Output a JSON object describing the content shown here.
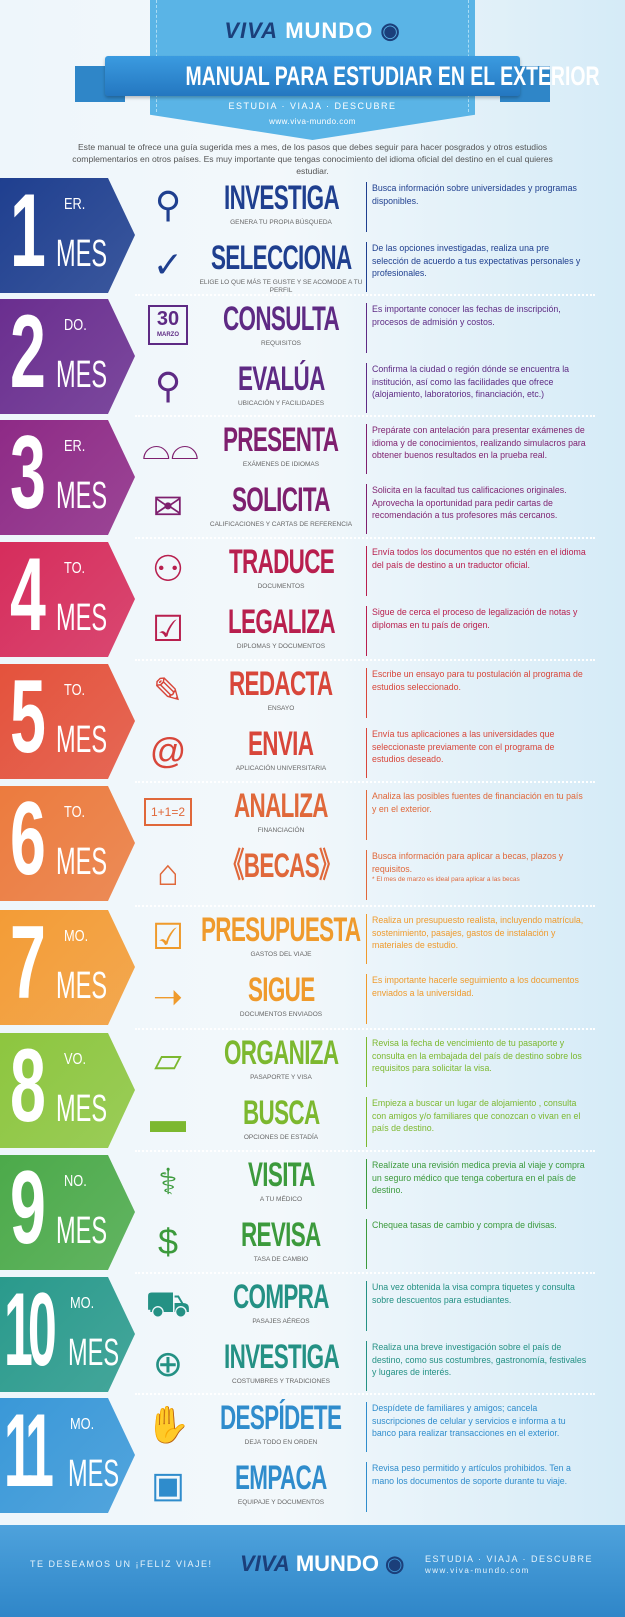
{
  "header": {
    "logo_text": "VIVA MUNDO",
    "logo_viva": "VIVA",
    "logo_mundo": "MUNDO",
    "title": "MANUAL PARA ESTUDIAR EN EL EXTERIOR",
    "tagline": "ESTUDIA · VIAJA · DESCUBRE",
    "url": "www.viva-mundo.com",
    "brand_color": "#5ab4e6"
  },
  "intro": "Este manual te ofrece una guía sugerida mes a mes, de los pasos que debes seguir para hacer posgrados y otros estudios complementarios en otros países. Es muy importante que tengas conocimiento del idioma oficial del destino en el cual quieres estudiar.",
  "months": [
    {
      "number": "1",
      "ordinal": "ER.",
      "label": "MES",
      "color": "#1f3f8f",
      "text_color": "#1f3f8f",
      "items": [
        {
          "icon": "magnifier-icon",
          "title": "INVESTIGA",
          "subtitle": "GENERA TU PROPIA BÚSQUEDA",
          "description": "Busca información sobre universidades y programas disponibles."
        },
        {
          "icon": "checkmark-icon",
          "title": "SELECCIONA",
          "subtitle": "ELIGE LO QUE MÁS TE GUSTE Y SE ACOMODE A TU PERFIL",
          "description": "De las opciones investigadas, realiza una pre selección de acuerdo a tus expectativas personales y profesionales."
        }
      ]
    },
    {
      "number": "2",
      "ordinal": "DO.",
      "label": "MES",
      "color": "#6a2e8f",
      "text_color": "#5e2a84",
      "items": [
        {
          "icon": "calendar-icon",
          "icon_text": "30",
          "icon_caption": "MARZO",
          "title": "CONSULTA",
          "subtitle": "REQUISITOS",
          "description": "Es importante conocer las fechas de inscripción, procesos de admisión y costos."
        },
        {
          "icon": "pushpin-icon",
          "title": "EVALÚA",
          "subtitle": "UBICACIÓN Y FACILIDADES",
          "description": "Confirma la ciudad o región dónde se encuentra la institución, así como las facilidades que ofrece (alojamiento, laboratorios, financiación, etc.)"
        }
      ]
    },
    {
      "number": "3",
      "ordinal": "ER.",
      "label": "MES",
      "color": "#8e2a86",
      "text_color": "#7e1f6e",
      "items": [
        {
          "icon": "glasses-icon",
          "title": "PRESENTA",
          "subtitle": "EXÁMENES DE IDIOMAS",
          "description": "Prepárate con antelación para presentar exámenes de idioma y de conocimientos, realizando simulacros para obtener buenos resultados en la prueba real."
        },
        {
          "icon": "envelope-icon",
          "title": "SOLICITA",
          "subtitle": "CALIFICACIONES Y CARTAS DE REFERENCIA",
          "description": "Solicita en la facultad tus calificaciones originales. Aprovecha la oportunidad para pedir cartas de recomendación a tus profesores más cercanos."
        }
      ]
    },
    {
      "number": "4",
      "ordinal": "TO.",
      "label": "MES",
      "color": "#d62d5c",
      "text_color": "#b81f4e",
      "items": [
        {
          "icon": "translator-desk-icon",
          "title": "TRADUCE",
          "subtitle": "DOCUMENTOS",
          "description": "Envía todos los documentos que no estén en el idioma del país de destino a un traductor oficial."
        },
        {
          "icon": "checked-document-icon",
          "title": "LEGALIZA",
          "subtitle": "DIPLOMAS Y DOCUMENTOS",
          "description": "Sigue de cerca el proceso de legalización de notas y diplomas en tu país de origen."
        }
      ]
    },
    {
      "number": "5",
      "ordinal": "TO.",
      "label": "MES",
      "color": "#e4523c",
      "text_color": "#d8463a",
      "items": [
        {
          "icon": "pencil-icon",
          "title": "REDACTA",
          "subtitle": "ENSAYO",
          "description": "Escribe un ensayo para tu postulación al programa de estudios seleccionado."
        },
        {
          "icon": "email-at-icon",
          "title": "ENVIA",
          "subtitle": "APLICACIÓN UNIVERSITARIA",
          "description": "Envía tus aplicaciones a las universidades que seleccionaste previamente con el programa de estudios deseado."
        }
      ]
    },
    {
      "number": "6",
      "ordinal": "TO.",
      "label": "MES",
      "color": "#ec7b3e",
      "text_color": "#e0683a",
      "items": [
        {
          "icon": "math-board-icon",
          "icon_text": "1+1=2",
          "title": "ANALIZA",
          "subtitle": "FINANCIACIÓN",
          "description": "Analiza las posibles fuentes de financiación en tu país y en el exterior."
        },
        {
          "icon": "gift-icon",
          "title": "《BECAS》",
          "subtitle": "",
          "description": "Busca información para aplicar a becas, plazos y requisitos.",
          "note": "* El mes de marzo es ideal para aplicar a las becas"
        }
      ]
    },
    {
      "number": "7",
      "ordinal": "MO.",
      "label": "MES",
      "color": "#f39c36",
      "text_color": "#ef9a2c",
      "items": [
        {
          "icon": "checklist-icon",
          "title": "PRESUPUESTA",
          "subtitle": "GASTOS DEL VIAJE",
          "description": "Realiza un presupuesto realista, incluyendo matrícula, sostenimiento, pasajes, gastos de instalación y materiales de estudio."
        },
        {
          "icon": "dotted-path-arrow-icon",
          "title": "SIGUE",
          "subtitle": "DOCUMENTOS ENVIADOS",
          "description": "Es importante hacerle seguimiento a los documentos enviados a la universidad."
        }
      ]
    },
    {
      "number": "8",
      "ordinal": "VO.",
      "label": "MES",
      "color": "#8dc63f",
      "text_color": "#7cb82f",
      "items": [
        {
          "icon": "folder-icon",
          "title": "ORGANIZA",
          "subtitle": "PASAPORTE Y VISA",
          "description": "Revisa la fecha de vencimiento de tu pasaporte y consulta en la embajada del país de destino sobre los requisitos para solicitar la visa."
        },
        {
          "icon": "bed-icon",
          "title": "BUSCA",
          "subtitle": "OPCIONES DE ESTADÍA",
          "description": "Empieza  a buscar un lugar de alojamiento , consulta con amigos y/o familiares que conozcan o vivan en el país de destino."
        }
      ]
    },
    {
      "number": "9",
      "ordinal": "NO.",
      "label": "MES",
      "color": "#4caa4a",
      "text_color": "#3c9a3c",
      "items": [
        {
          "icon": "doctor-icon",
          "title": "VISITA",
          "subtitle": "A TU MÉDICO",
          "description": "Realízate una revisión medica previa al viaje y compra un seguro médico que tenga cobertura en el país de destino."
        },
        {
          "icon": "currency-exchange-icon",
          "title": "REVISA",
          "subtitle": "TASA DE CAMBIO",
          "description": "Chequea tasas de cambio y compra de divisas."
        }
      ]
    },
    {
      "number": "10",
      "ordinal": "MO.",
      "label": "MES",
      "color": "#2a9a8c",
      "text_color": "#249184",
      "items": [
        {
          "icon": "shopping-cart-icon",
          "title": "COMPRA",
          "subtitle": "PASAJES AÉREOS",
          "description": "Una vez obtenida la visa compra tiquetes y consulta sobre descuentos para estudiantes."
        },
        {
          "icon": "globe-search-icon",
          "title": "INVESTIGA",
          "subtitle": "COSTUMBRES Y TRADICIONES",
          "description": "Realiza una breve investigación sobre el país de destino, como sus costumbres, gastronomía, festivales y lugares de interés."
        }
      ]
    },
    {
      "number": "11",
      "ordinal": "MO.",
      "label": "MES",
      "color": "#3a98d8",
      "text_color": "#2f8ccc",
      "items": [
        {
          "icon": "waving-traveler-icon",
          "title": "DESPÍDETE",
          "subtitle": "DEJA TODO EN ORDEN",
          "description": "Despídete de familiares y amigos; cancela suscripciones  de celular y servicios e informa a tu banco para realizar transacciones en el exterior."
        },
        {
          "icon": "suitcase-icon",
          "title": "EMPACA",
          "subtitle": "EQUIPAJE Y DOCUMENTOS",
          "description": "Revisa peso permitido y artículos prohibidos. Ten a mano los documentos de soporte durante tu viaje."
        }
      ]
    }
  ],
  "footer": {
    "message": "TE DESEAMOS UN ¡FELIZ VIAJE!",
    "logo_viva": "VIVA",
    "logo_mundo": "MUNDO",
    "tagline": "ESTUDIA · VIAJA · DESCUBRE",
    "url": "www.viva-mundo.com"
  }
}
